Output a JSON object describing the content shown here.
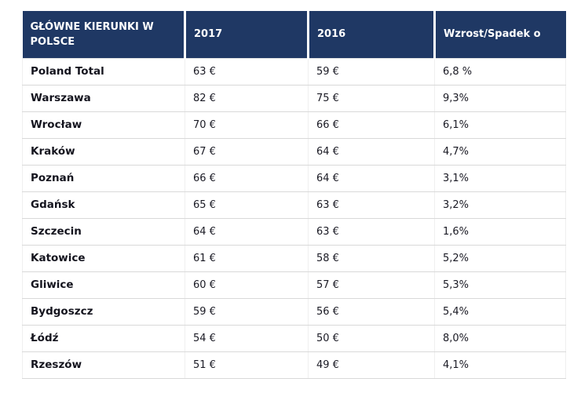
{
  "colors": {
    "header_bg": "#1f3864",
    "header_text": "#ffffff",
    "row_border": "#d9d9d9",
    "body_text": "#1a1a24"
  },
  "table": {
    "headers": {
      "destination": "GŁÓWNE KIERUNKI W\n POLSCE",
      "year_2017": "2017",
      "year_2016": "2016",
      "change": "Wzrost/Spadek o"
    },
    "rows": [
      {
        "city": "Poland Total",
        "y2017": "63 €",
        "y2016": "59 €",
        "change": "6,8 %"
      },
      {
        "city": "Warszawa",
        "y2017": "82 €",
        "y2016": "75 €",
        "change": "9,3%"
      },
      {
        "city": "Wrocław",
        "y2017": "70 €",
        "y2016": "66 €",
        "change": "6,1%"
      },
      {
        "city": "Kraków",
        "y2017": "67 €",
        "y2016": "64 €",
        "change": "4,7%"
      },
      {
        "city": "Poznań",
        "y2017": "66 €",
        "y2016": "64 €",
        "change": "3,1%"
      },
      {
        "city": "Gdańsk",
        "y2017": "65 €",
        "y2016": "63 €",
        "change": "3,2%"
      },
      {
        "city": "Szczecin",
        "y2017": "64 €",
        "y2016": "63 €",
        "change": "1,6%"
      },
      {
        "city": "Katowice",
        "y2017": "61 €",
        "y2016": "58 €",
        "change": "5,2%"
      },
      {
        "city": "Gliwice",
        "y2017": "60 €",
        "y2016": "57 €",
        "change": "5,3%"
      },
      {
        "city": "Bydgoszcz",
        "y2017": "59 €",
        "y2016": "56 €",
        "change": "5,4%"
      },
      {
        "city": "Łódź",
        "y2017": "54 €",
        "y2016": "50 €",
        "change": "8,0%"
      },
      {
        "city": "Rzeszów",
        "y2017": "51 €",
        "y2016": "49 €",
        "change": "4,1%"
      }
    ]
  },
  "chart_data": {
    "type": "table",
    "title": "GŁÓWNE KIERUNKI W POLSCE",
    "categories": [
      "Poland Total",
      "Warszawa",
      "Wrocław",
      "Kraków",
      "Poznań",
      "Gdańsk",
      "Szczecin",
      "Katowice",
      "Gliwice",
      "Bydgoszcz",
      "Łódź",
      "Rzeszów"
    ],
    "series": [
      {
        "name": "2017",
        "unit": "€",
        "values": [
          63,
          82,
          70,
          67,
          66,
          65,
          64,
          61,
          60,
          59,
          54,
          51
        ]
      },
      {
        "name": "2016",
        "unit": "€",
        "values": [
          59,
          75,
          66,
          64,
          64,
          63,
          63,
          58,
          57,
          56,
          50,
          49
        ]
      },
      {
        "name": "Wzrost/Spadek o",
        "unit": "%",
        "values": [
          6.8,
          9.3,
          6.1,
          4.7,
          3.1,
          3.2,
          1.6,
          5.2,
          5.3,
          5.4,
          8.0,
          4.1
        ]
      }
    ]
  }
}
